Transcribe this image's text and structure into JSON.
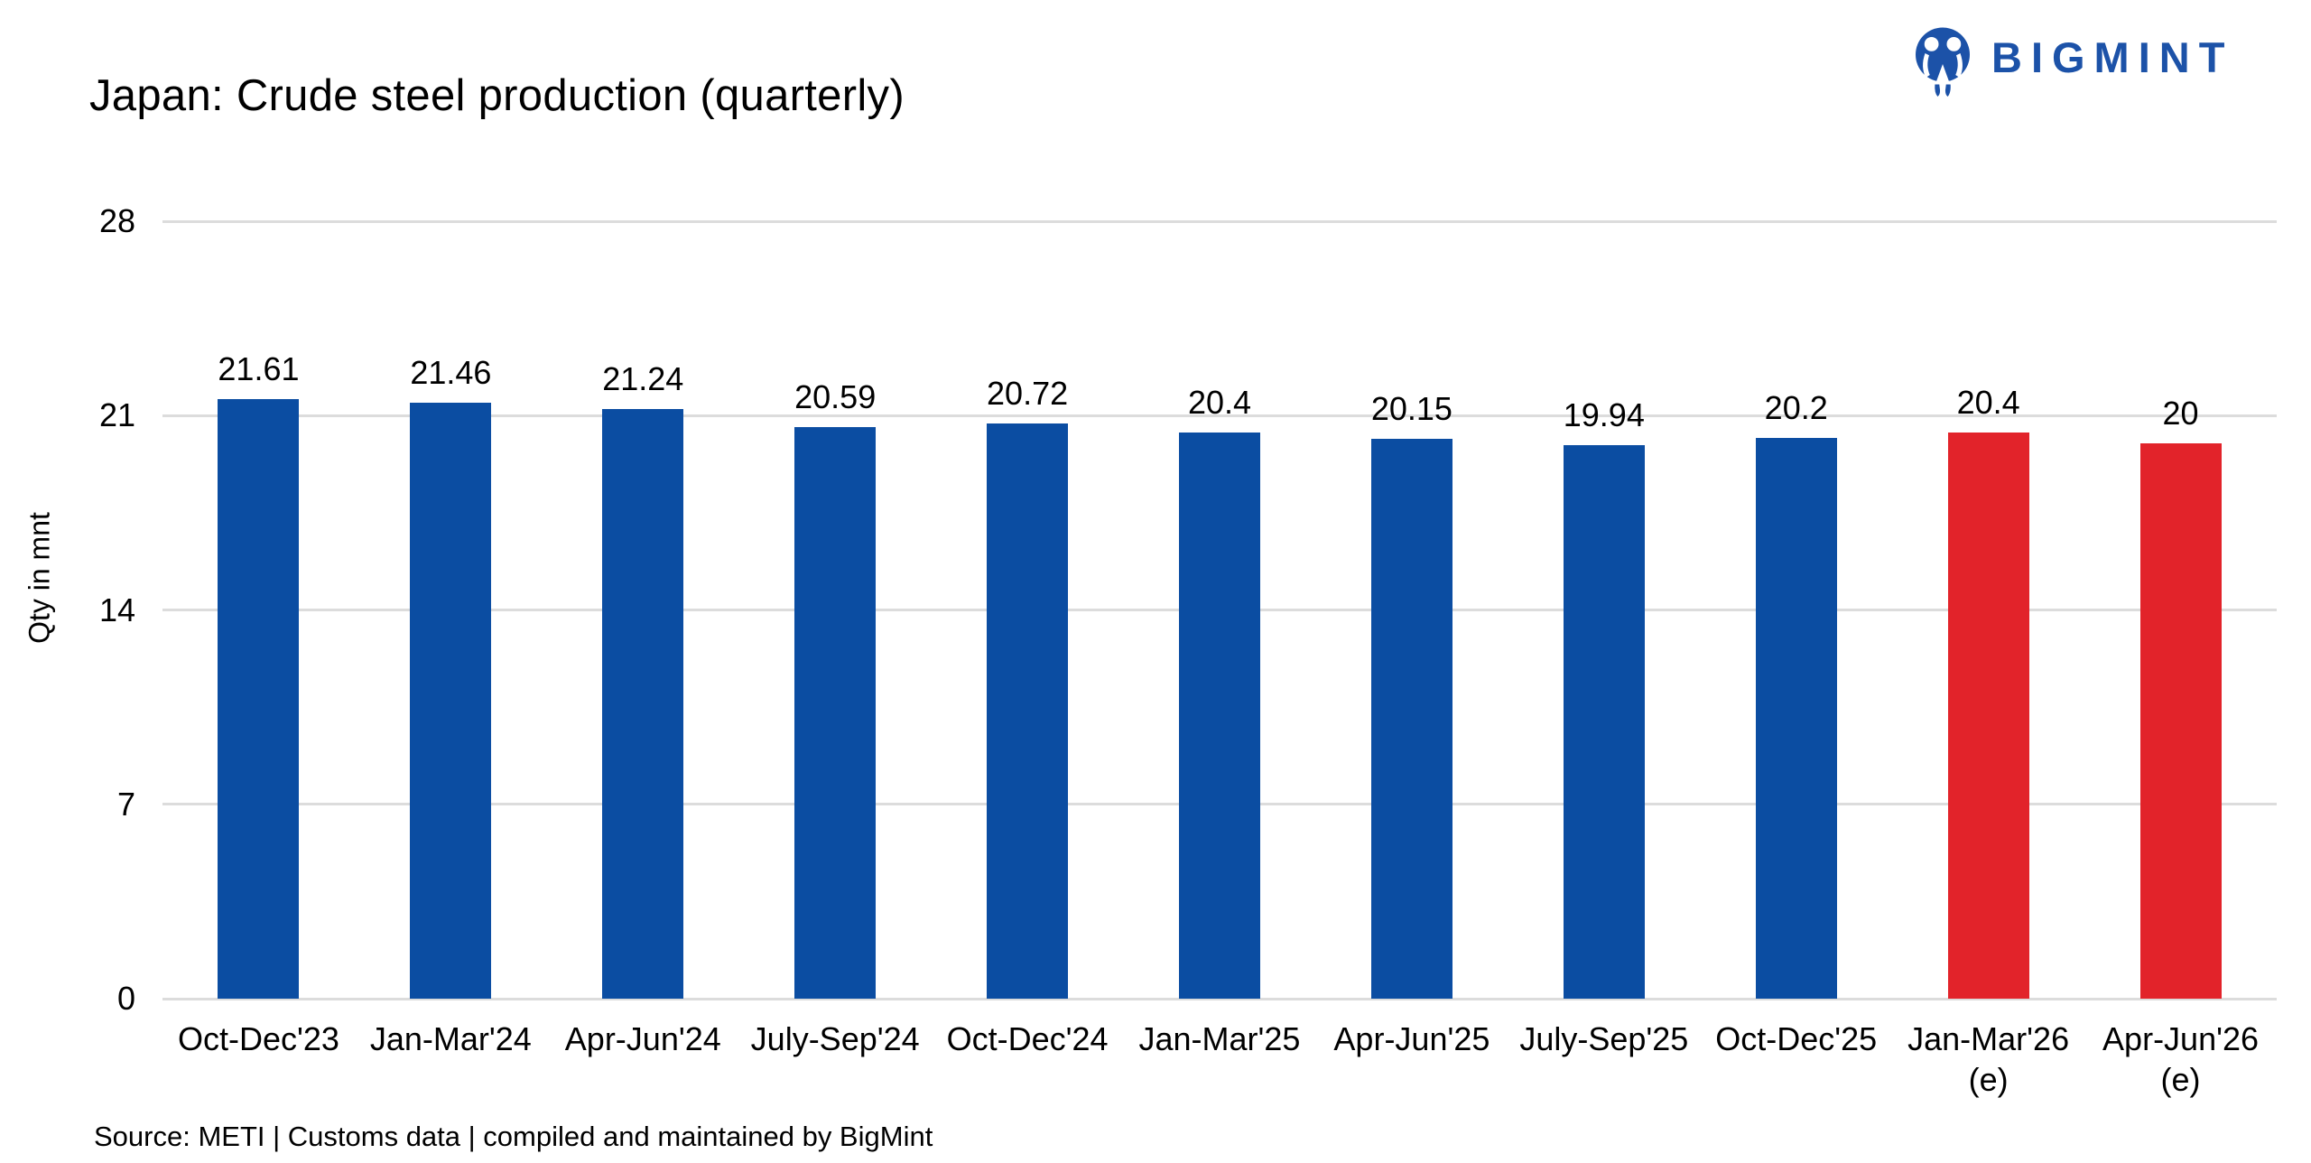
{
  "header": {
    "title": "Japan: Crude steel production (quarterly)",
    "logo_text": "BIGMINT",
    "logo_color": "#1C52A8"
  },
  "chart_data": {
    "type": "bar",
    "title": "Japan: Crude steel production (quarterly)",
    "ylabel": "Qty in mnt",
    "xlabel": "",
    "ylim": [
      0,
      28
    ],
    "yticks": [
      0,
      7,
      14,
      21,
      28
    ],
    "grid": "horizontal",
    "legend": "none",
    "categories": [
      "Oct-Dec'23",
      "Jan-Mar'24",
      "Apr-Jun'24",
      "July-Sep'24",
      "Oct-Dec'24",
      "Jan-Mar'25",
      "Apr-Jun'25",
      "July-Sep'25",
      "Oct-Dec'25",
      "Jan-Mar'26",
      "Apr-Jun'26"
    ],
    "estimate_flags": [
      false,
      false,
      false,
      false,
      false,
      false,
      false,
      false,
      false,
      true,
      true
    ],
    "estimate_suffix": "(e)",
    "values": [
      21.61,
      21.46,
      21.24,
      20.59,
      20.72,
      20.4,
      20.15,
      19.94,
      20.2,
      20.4,
      20
    ],
    "value_labels": [
      "21.61",
      "21.46",
      "21.24",
      "20.59",
      "20.72",
      "20.4",
      "20.15",
      "19.94",
      "20.2",
      "20.4",
      "20"
    ],
    "colors": {
      "actual": "#0B4DA2",
      "estimate": "#E2232A",
      "gridline": "#DCDCDC"
    }
  },
  "footer": {
    "source": "Source: METI | Customs data | compiled and maintained by BigMint"
  }
}
